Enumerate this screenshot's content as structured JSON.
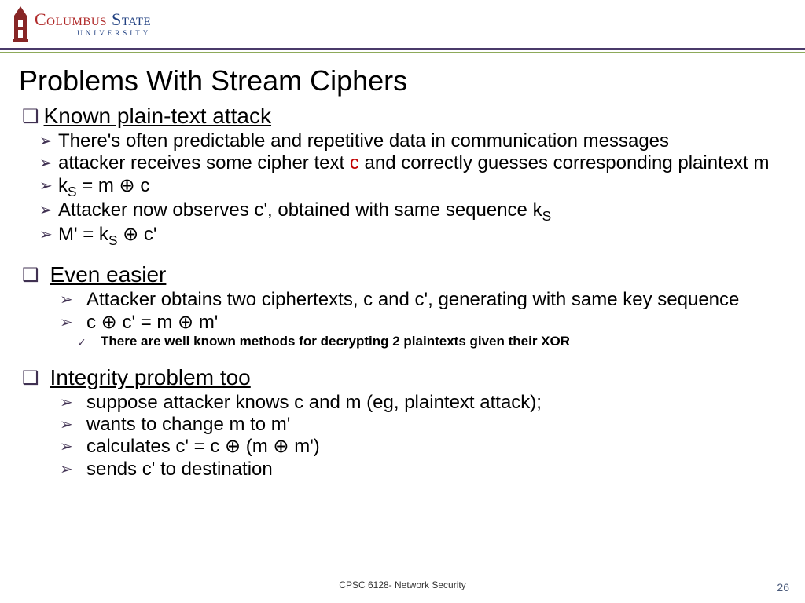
{
  "logo": {
    "line1a": "Columbus",
    "line1b": "State",
    "sub": "UNIVERSITY"
  },
  "title": "Problems With Stream Ciphers",
  "sections": [
    {
      "head": "Known plain-text attack",
      "items": [
        {
          "html": "There's often predictable and repetitive data in communication messages"
        },
        {
          "html": "attacker receives some cipher text <span class='red'>c</span> and correctly guesses corresponding plaintext m"
        },
        {
          "html": "k<span class='subscr'>S</span> = m ⊕ c"
        },
        {
          "html": "Attacker now observes c', obtained with same sequence k<span class='subscr'>S</span>"
        },
        {
          "html": "M' = k<span class='subscr'>S</span> ⊕ c'"
        }
      ],
      "indent": 1
    },
    {
      "head": "Even easier",
      "items": [
        {
          "html": "Attacker obtains two ciphertexts, c and c', generating with same key sequence"
        },
        {
          "html": "c ⊕ c' = m ⊕ m'"
        }
      ],
      "indent": 2,
      "check": "There are well known methods for decrypting 2 plaintexts given their XOR"
    },
    {
      "head": "Integrity problem too",
      "items": [
        {
          "html": "suppose attacker knows c and m (eg, plaintext attack);"
        },
        {
          "html": "wants to change m to m'"
        },
        {
          "html": "calculates c' = c ⊕ (m ⊕ m')"
        },
        {
          "html": "sends c' to destination"
        }
      ],
      "indent": 2
    }
  ],
  "footer": "CPSC 6128- Network Security",
  "page": "26",
  "colors": {
    "bullet": "#403152",
    "accent_red": "#c00000",
    "rule_top": "#4a3a6a",
    "rule_bottom": "#8daa5a"
  }
}
